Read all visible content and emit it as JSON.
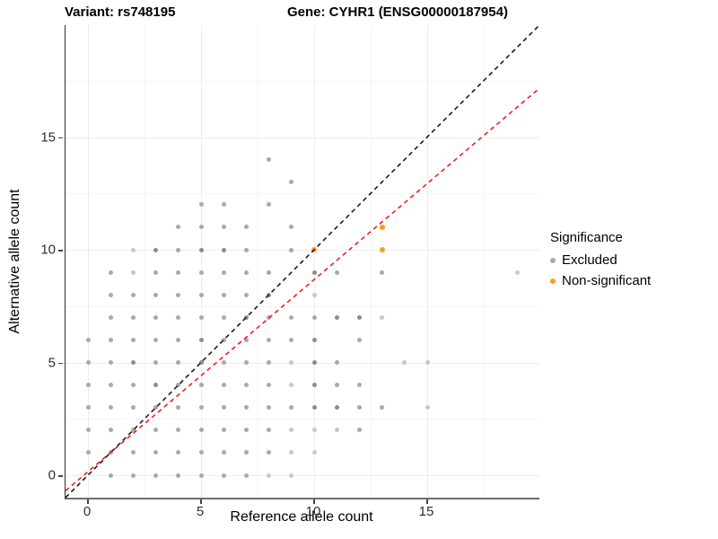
{
  "header": {
    "variant_title": "Variant: rs748195",
    "gene_title": "Gene: CYHR1 (ENSG00000187954)"
  },
  "legend": {
    "title": "Significance",
    "items": [
      {
        "label": "Excluded",
        "color": "#a9a9a9"
      },
      {
        "label": "Non-significant",
        "color": "#f9a11b"
      }
    ]
  },
  "point_shades": {
    "l": "#c7c7c7",
    "m": "#a9a9a9",
    "d": "#8c8c8c"
  },
  "chart_data": {
    "type": "scatter",
    "title": "Variant: rs748195 / Gene: CYHR1 (ENSG00000187954)",
    "xlabel": "Reference allele count",
    "ylabel": "Alternative allele count",
    "xlim": [
      -1,
      19.96
    ],
    "ylim": [
      -1,
      19.96
    ],
    "x_ticks": [
      0,
      5,
      10,
      15
    ],
    "x_minor_ticks": [
      2.5,
      7.5,
      12.5,
      17.5
    ],
    "y_ticks": [
      0,
      5,
      10,
      15
    ],
    "y_minor_ticks": [
      2.5,
      7.5,
      12.5,
      17.5
    ],
    "grid": true,
    "legend_position": "right",
    "series": [
      {
        "name": "Excluded",
        "color": "#a9a9a9",
        "points": [
          [
            1,
            0,
            "m"
          ],
          [
            2,
            0,
            "m"
          ],
          [
            3,
            0,
            "m"
          ],
          [
            4,
            0,
            "m"
          ],
          [
            5,
            0,
            "m"
          ],
          [
            6,
            0,
            "m"
          ],
          [
            7,
            0,
            "m"
          ],
          [
            8,
            0,
            "l"
          ],
          [
            9,
            0,
            "l"
          ],
          [
            0,
            1,
            "m"
          ],
          [
            1,
            1,
            "m"
          ],
          [
            2,
            1,
            "m"
          ],
          [
            3,
            1,
            "m"
          ],
          [
            4,
            1,
            "m"
          ],
          [
            5,
            1,
            "m"
          ],
          [
            6,
            1,
            "m"
          ],
          [
            7,
            1,
            "m"
          ],
          [
            8,
            1,
            "m"
          ],
          [
            9,
            1,
            "l"
          ],
          [
            10,
            1,
            "l"
          ],
          [
            0,
            2,
            "m"
          ],
          [
            1,
            2,
            "m"
          ],
          [
            2,
            2,
            "m"
          ],
          [
            3,
            2,
            "m"
          ],
          [
            4,
            2,
            "m"
          ],
          [
            5,
            2,
            "m"
          ],
          [
            6,
            2,
            "m"
          ],
          [
            7,
            2,
            "m"
          ],
          [
            8,
            2,
            "m"
          ],
          [
            9,
            2,
            "l"
          ],
          [
            10,
            2,
            "l"
          ],
          [
            11,
            2,
            "l"
          ],
          [
            12,
            2,
            "m"
          ],
          [
            0,
            3,
            "m"
          ],
          [
            1,
            3,
            "m"
          ],
          [
            2,
            3,
            "m"
          ],
          [
            3,
            3,
            "m"
          ],
          [
            4,
            3,
            "m"
          ],
          [
            5,
            3,
            "m"
          ],
          [
            6,
            3,
            "m"
          ],
          [
            7,
            3,
            "m"
          ],
          [
            8,
            3,
            "m"
          ],
          [
            9,
            3,
            "m"
          ],
          [
            10,
            3,
            "d"
          ],
          [
            11,
            3,
            "d"
          ],
          [
            12,
            3,
            "m"
          ],
          [
            13,
            3,
            "m"
          ],
          [
            15,
            3,
            "l"
          ],
          [
            0,
            4,
            "m"
          ],
          [
            1,
            4,
            "m"
          ],
          [
            2,
            4,
            "m"
          ],
          [
            3,
            4,
            "d"
          ],
          [
            4,
            4,
            "m"
          ],
          [
            5,
            4,
            "m"
          ],
          [
            6,
            4,
            "m"
          ],
          [
            7,
            4,
            "m"
          ],
          [
            8,
            4,
            "m"
          ],
          [
            9,
            4,
            "l"
          ],
          [
            10,
            4,
            "d"
          ],
          [
            11,
            4,
            "m"
          ],
          [
            12,
            4,
            "m"
          ],
          [
            0,
            5,
            "m"
          ],
          [
            1,
            5,
            "m"
          ],
          [
            2,
            5,
            "d"
          ],
          [
            3,
            5,
            "m"
          ],
          [
            4,
            5,
            "m"
          ],
          [
            5,
            5,
            "d"
          ],
          [
            6,
            5,
            "m"
          ],
          [
            7,
            5,
            "m"
          ],
          [
            8,
            5,
            "m"
          ],
          [
            9,
            5,
            "l"
          ],
          [
            10,
            5,
            "d"
          ],
          [
            11,
            5,
            "m"
          ],
          [
            14,
            5,
            "l"
          ],
          [
            15,
            5,
            "l"
          ],
          [
            0,
            6,
            "m"
          ],
          [
            1,
            6,
            "m"
          ],
          [
            2,
            6,
            "m"
          ],
          [
            3,
            6,
            "m"
          ],
          [
            4,
            6,
            "m"
          ],
          [
            5,
            6,
            "d"
          ],
          [
            6,
            6,
            "m"
          ],
          [
            7,
            6,
            "m"
          ],
          [
            8,
            6,
            "m"
          ],
          [
            9,
            6,
            "m"
          ],
          [
            10,
            6,
            "d"
          ],
          [
            12,
            6,
            "m"
          ],
          [
            1,
            7,
            "m"
          ],
          [
            2,
            7,
            "m"
          ],
          [
            3,
            7,
            "m"
          ],
          [
            4,
            7,
            "m"
          ],
          [
            5,
            7,
            "m"
          ],
          [
            6,
            7,
            "m"
          ],
          [
            7,
            7,
            "d"
          ],
          [
            8,
            7,
            "m"
          ],
          [
            9,
            7,
            "m"
          ],
          [
            10,
            7,
            "m"
          ],
          [
            11,
            7,
            "d"
          ],
          [
            12,
            7,
            "d"
          ],
          [
            13,
            7,
            "l"
          ],
          [
            1,
            8,
            "m"
          ],
          [
            2,
            8,
            "m"
          ],
          [
            3,
            8,
            "m"
          ],
          [
            4,
            8,
            "m"
          ],
          [
            5,
            8,
            "m"
          ],
          [
            6,
            8,
            "m"
          ],
          [
            7,
            8,
            "m"
          ],
          [
            8,
            8,
            "d"
          ],
          [
            10,
            8,
            "l"
          ],
          [
            1,
            9,
            "m"
          ],
          [
            2,
            9,
            "l"
          ],
          [
            3,
            9,
            "m"
          ],
          [
            4,
            9,
            "m"
          ],
          [
            5,
            9,
            "m"
          ],
          [
            6,
            9,
            "m"
          ],
          [
            7,
            9,
            "m"
          ],
          [
            8,
            9,
            "m"
          ],
          [
            10,
            9,
            "d"
          ],
          [
            11,
            9,
            "m"
          ],
          [
            13,
            9,
            "m"
          ],
          [
            19,
            9,
            "l"
          ],
          [
            2,
            10,
            "l"
          ],
          [
            3,
            10,
            "d"
          ],
          [
            4,
            10,
            "m"
          ],
          [
            5,
            10,
            "d"
          ],
          [
            6,
            10,
            "d"
          ],
          [
            7,
            10,
            "m"
          ],
          [
            9,
            10,
            "m"
          ],
          [
            4,
            11,
            "m"
          ],
          [
            5,
            11,
            "m"
          ],
          [
            6,
            11,
            "m"
          ],
          [
            7,
            11,
            "m"
          ],
          [
            9,
            11,
            "m"
          ],
          [
            5,
            12,
            "m"
          ],
          [
            6,
            12,
            "m"
          ],
          [
            8,
            12,
            "m"
          ],
          [
            9,
            13,
            "m"
          ],
          [
            8,
            14,
            "m"
          ]
        ]
      },
      {
        "name": "Non-significant",
        "color": "#f9a11b",
        "points": [
          [
            10,
            10,
            "o"
          ],
          [
            13,
            11,
            "o"
          ],
          [
            13,
            10,
            "o"
          ]
        ]
      }
    ],
    "lines": [
      {
        "name": "identity",
        "color": "#1a1a1a",
        "style": "dashed",
        "slope": 1,
        "intercept": 0
      },
      {
        "name": "fit",
        "color": "#ef1f1f",
        "style": "dashed",
        "slope": 0.852,
        "intercept": 0.155
      }
    ]
  }
}
